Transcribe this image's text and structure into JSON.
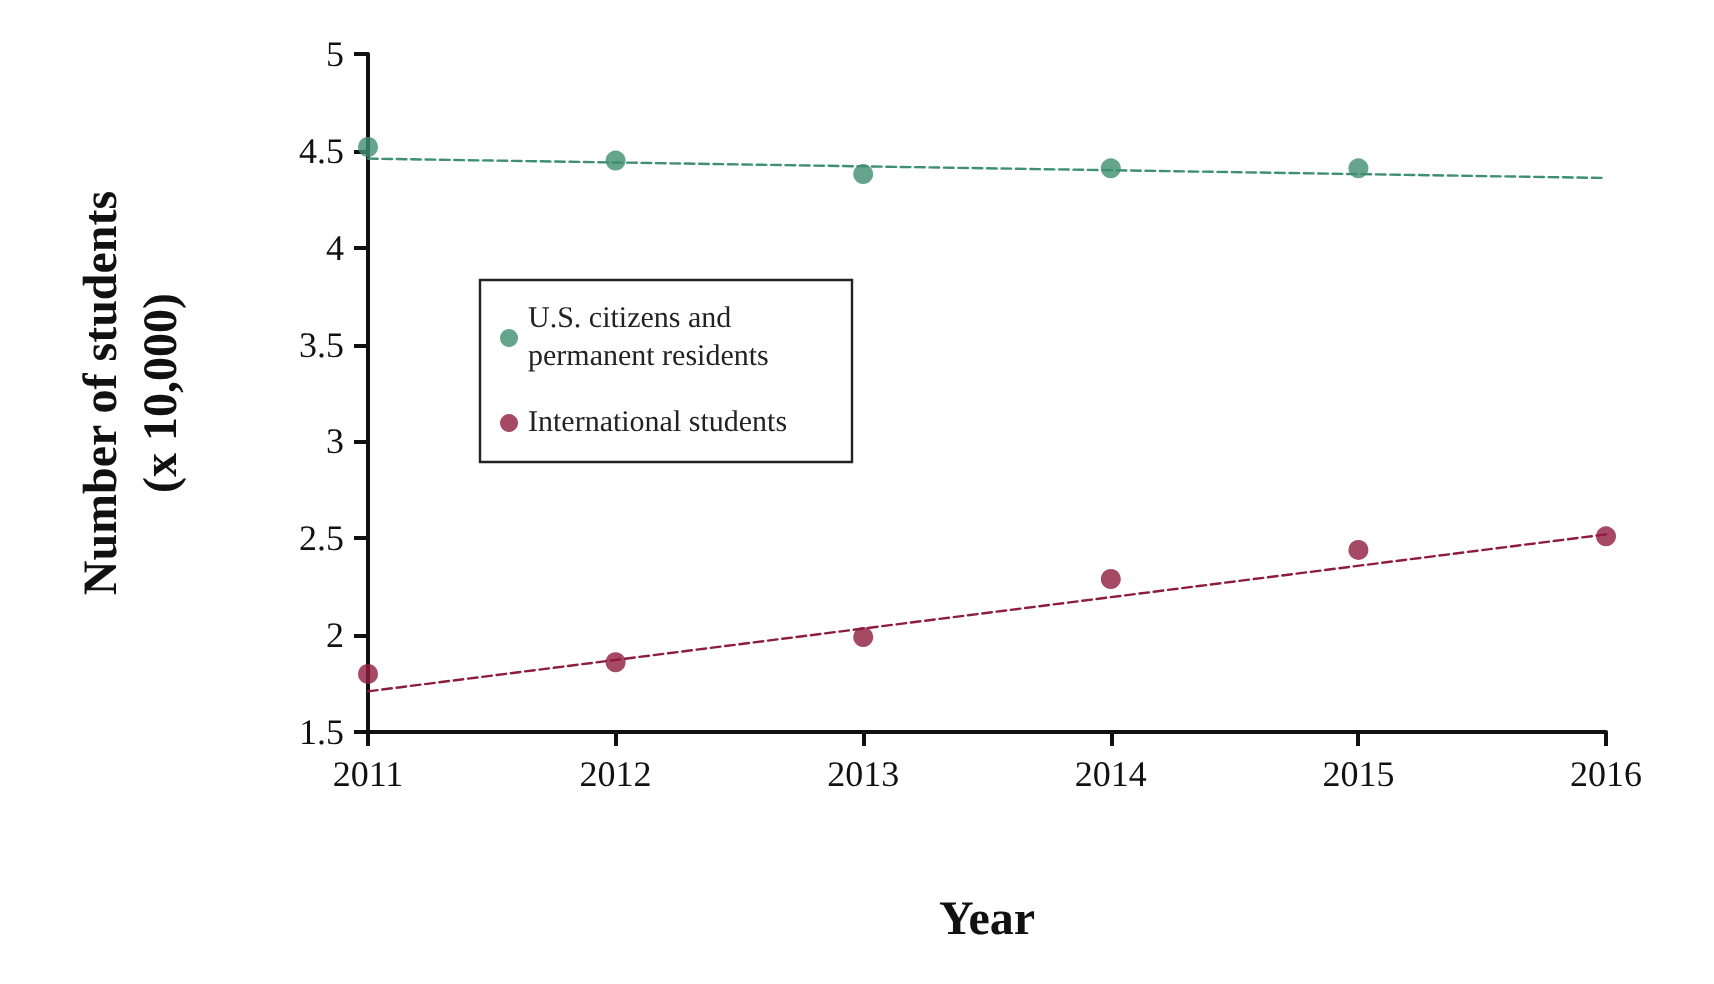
{
  "chart_data": {
    "type": "scatter",
    "xlabel": "Year",
    "ylabel": "Number of students\n(x 10,000)",
    "series": [
      {
        "name": "U.S. citizens and permanent residents",
        "color": "#3f8f72",
        "x": [
          2011,
          2012,
          2013,
          2014,
          2015
        ],
        "values": [
          4.52,
          4.45,
          4.38,
          4.41,
          4.41
        ]
      },
      {
        "name": "International students",
        "color": "#8e1c3f",
        "x": [
          2011,
          2012,
          2013,
          2014,
          2015,
          2016
        ],
        "values": [
          1.8,
          1.86,
          1.99,
          2.29,
          2.44,
          2.51
        ]
      },
      {
        "type": "line",
        "color": "#3f8f72",
        "x": [
          2011,
          2016
        ],
        "values": [
          4.46,
          4.36
        ],
        "line_style": "dashed",
        "marker": "none"
      },
      {
        "type": "line",
        "color": "#8e1c3f",
        "x": [
          2011,
          2016
        ],
        "values": [
          1.71,
          2.52
        ],
        "line_style": "dashed",
        "marker": "none"
      }
    ],
    "xlim": [
      2011,
      2016
    ],
    "xticks": [
      2011,
      2012,
      2013,
      2014,
      2015,
      2016
    ],
    "ylim": [
      1.5,
      5
    ],
    "yticks": [
      1.5,
      2,
      2.5,
      3,
      3.5,
      4,
      4.5,
      5
    ],
    "grid": false,
    "legend": "top left",
    "marker": "circle"
  }
}
